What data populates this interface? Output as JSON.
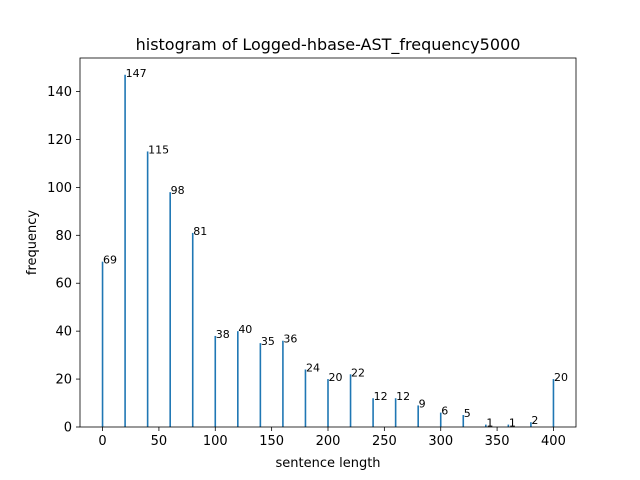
{
  "chart_data": {
    "type": "bar",
    "title": "histogram of Logged-hbase-AST_frequency5000",
    "xlabel": "sentence length",
    "ylabel": "frequency",
    "xlim": [
      -20,
      420
    ],
    "ylim": [
      0,
      154
    ],
    "x_ticks": [
      "0",
      "50",
      "100",
      "150",
      "200",
      "250",
      "300",
      "350",
      "400"
    ],
    "y_ticks": [
      "0",
      "20",
      "40",
      "60",
      "80",
      "100",
      "120",
      "140"
    ],
    "grid": false,
    "bar_color": "#1f77b4",
    "x": [
      0,
      20,
      40,
      60,
      80,
      100,
      120,
      140,
      160,
      180,
      200,
      220,
      240,
      260,
      280,
      300,
      320,
      340,
      360,
      380,
      400
    ],
    "values": [
      69,
      147,
      115,
      98,
      81,
      38,
      40,
      35,
      36,
      24,
      20,
      22,
      12,
      12,
      9,
      6,
      5,
      1,
      1,
      2,
      20
    ],
    "labels": [
      "69",
      "147",
      "115",
      "98",
      "81",
      "38",
      "40",
      "35",
      "36",
      "24",
      "20",
      "22",
      "12",
      "12",
      "9",
      "6",
      "5",
      "1",
      "1",
      "2",
      "20"
    ]
  }
}
